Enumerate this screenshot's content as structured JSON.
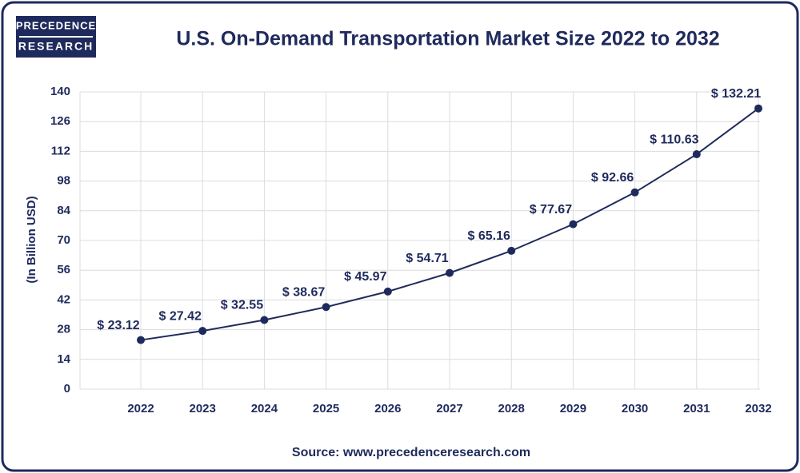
{
  "logo": {
    "line1": "PRECEDENCE",
    "line2": "RESEARCH"
  },
  "chart_data": {
    "type": "line",
    "title": "U.S. On-Demand Transportation Market Size 2022 to 2032",
    "y_label": "(In Billion USD)",
    "categories": [
      "2022",
      "2023",
      "2024",
      "2025",
      "2026",
      "2027",
      "2028",
      "2029",
      "2030",
      "2031",
      "2032"
    ],
    "values": [
      23.12,
      27.42,
      32.55,
      38.67,
      45.97,
      54.71,
      65.16,
      77.67,
      92.66,
      110.63,
      132.21
    ],
    "value_labels": [
      "$ 23.12",
      "$ 27.42",
      "$ 32.55",
      "$ 38.67",
      "$ 45.97",
      "$ 54.71",
      "$ 65.16",
      "$ 77.67",
      "$ 92.66",
      "$ 110.63",
      "$ 132.21"
    ],
    "color": "#1f2a5c",
    "ylim": [
      0,
      140
    ],
    "yticks": [
      0,
      14,
      28,
      42,
      56,
      70,
      84,
      98,
      112,
      126,
      140
    ],
    "grid": true,
    "source": "Source: www.precedenceresearch.com"
  }
}
